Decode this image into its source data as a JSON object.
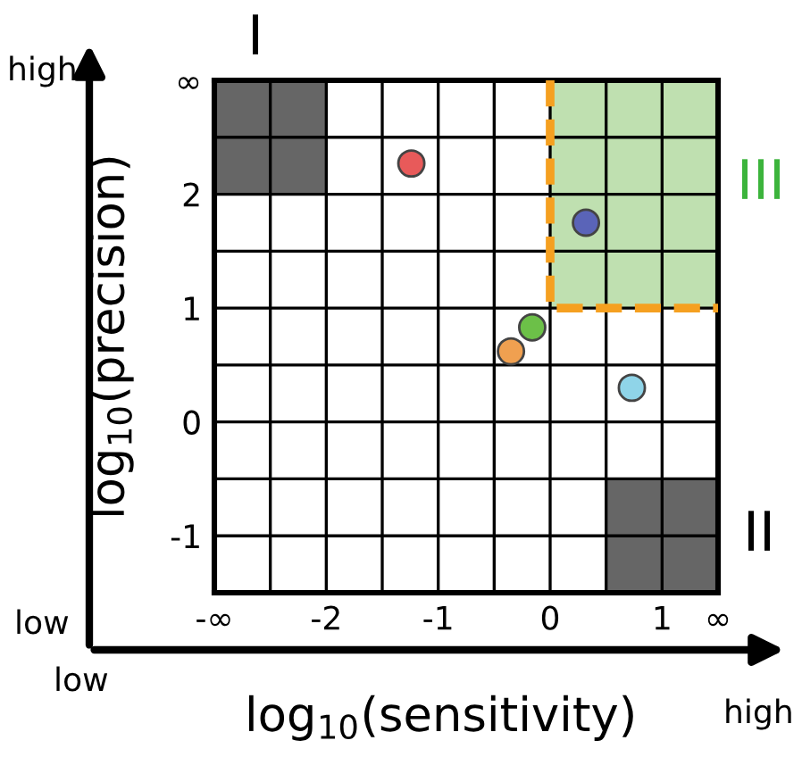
{
  "chart_data": {
    "type": "scatter",
    "xlabel": "log$_{10}$(sensitivity)",
    "ylabel": "log$_{10}$(precision)",
    "xlim": [
      -3,
      1.5
    ],
    "ylim": [
      -1.5,
      3
    ],
    "xticks": [
      {
        "value": -3,
        "label": "-∞"
      },
      {
        "value": -2.5,
        "label": null
      },
      -2,
      {
        "value": -1.5,
        "label": null
      },
      -1,
      {
        "value": -0.5,
        "label": null
      },
      0,
      {
        "value": 0.5,
        "label": null
      },
      1,
      {
        "value": 1.5,
        "label": "∞"
      }
    ],
    "yticks": [
      {
        "value": -1.5,
        "label": null
      },
      -1,
      {
        "value": -0.5,
        "label": null
      },
      0,
      {
        "value": 0.5,
        "label": null
      },
      1,
      {
        "value": 1.5,
        "label": null
      },
      2,
      {
        "value": 2.5,
        "label": null
      },
      {
        "value": 3,
        "label": "∞"
      }
    ],
    "grid": true,
    "series": [
      {
        "type": "bar",
        "color": "#666666",
        "x": [
          -2.75,
          -2.25
        ],
        "values": [
          1,
          1
        ],
        "base": [
          2,
          2
        ]
      },
      {
        "type": "bar",
        "color": "#666666",
        "x": [
          0.75,
          1.25
        ],
        "values": [
          1,
          1
        ],
        "base": [
          -1.5,
          -1.5
        ]
      },
      {
        "type": "bar",
        "color": "#bfe0b0",
        "x": [
          0.25,
          0.75,
          1.25
        ],
        "values": [
          2,
          2,
          2
        ],
        "base": [
          1,
          1,
          1
        ]
      },
      {
        "type": "line",
        "color": "#f5a020",
        "line_style": "dashed",
        "x": [
          0,
          0,
          1.5
        ],
        "values": [
          3,
          1,
          1
        ]
      },
      {
        "marker": "circle",
        "x": [
          -1.24,
          0.32,
          -0.16,
          -0.35,
          0.73
        ],
        "values": [
          2.27,
          1.75,
          0.83,
          0.62,
          0.3
        ],
        "colors": [
          "#e85a5a",
          "#5a64b8",
          "#6cc048",
          "#f0a050",
          "#8fd4e8"
        ]
      }
    ],
    "annotations": [
      "high",
      "low",
      "low",
      "high",
      "I",
      "II",
      "III"
    ]
  }
}
